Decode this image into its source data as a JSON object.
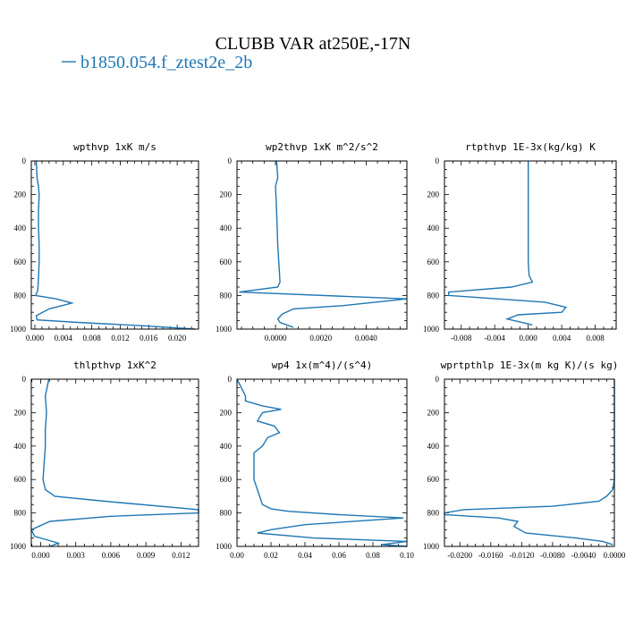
{
  "figure": {
    "title": "CLUBB VAR at250E,-17N",
    "legend": [
      {
        "label": "b1850.054.f_ztest2e_2b",
        "color": "#1f77b4"
      }
    ]
  },
  "chart_data": [
    {
      "type": "line",
      "title": "wpthvp   1xK m/s",
      "xlim": [
        -0.0005,
        0.023
      ],
      "ylim": [
        1000,
        0
      ],
      "yticks": [
        0,
        200,
        400,
        600,
        800,
        1000
      ],
      "xticks": [
        0,
        0.004,
        0.008,
        0.012,
        0.016,
        0.02
      ],
      "xtick_labels": [
        "0.000",
        "0.004",
        "0.008",
        "0.012",
        "0.016",
        "0.020"
      ],
      "series": [
        {
          "color": "#1f77b4",
          "x": [
            0.0002,
            0.0003,
            0.0005,
            0.0006,
            0.0005,
            0.0005,
            0.0006,
            0.0006,
            0.0005,
            0.0004,
            0.0001,
            0.003,
            0.0052,
            0.002,
            0.0002,
            0.0003,
            0.006,
            0.015,
            0.0225
          ],
          "y": [
            0,
            100,
            150,
            200,
            300,
            400,
            500,
            600,
            700,
            770,
            800,
            820,
            845,
            880,
            920,
            945,
            960,
            980,
            1000
          ]
        }
      ]
    },
    {
      "type": "line",
      "title": "wp2thvp   1xK m^2/s^2",
      "xlim": [
        -0.0017,
        0.0058
      ],
      "ylim": [
        1000,
        0
      ],
      "yticks": [
        0,
        200,
        400,
        600,
        800,
        1000
      ],
      "xticks": [
        0,
        0.002,
        0.004
      ],
      "xtick_labels": [
        "0.0000",
        "0.0020",
        "0.0040"
      ],
      "series": [
        {
          "color": "#1f77b4",
          "x": [
            5e-05,
            0.0001,
            0.0,
            5e-05,
            0.0001,
            0.0002,
            0.0001,
            -0.0016,
            0.0058,
            0.003,
            0.0008,
            0.0003,
            0.0001,
            0.0002,
            0.0008
          ],
          "y": [
            0,
            100,
            150,
            300,
            500,
            720,
            750,
            780,
            820,
            860,
            880,
            910,
            940,
            960,
            990
          ]
        }
      ]
    },
    {
      "type": "line",
      "title": "rtpthvp   1E-3x(kg/kg) K",
      "xlim": [
        -0.01,
        0.0105
      ],
      "ylim": [
        1000,
        0
      ],
      "yticks": [
        0,
        200,
        400,
        600,
        800,
        1000
      ],
      "xticks": [
        -0.008,
        -0.004,
        0,
        0.004,
        0.008
      ],
      "xtick_labels": [
        "-0.008",
        "-0.004",
        "0.000",
        "0.004",
        "0.008"
      ],
      "series": [
        {
          "color": "#1f77b4",
          "x": [
            0,
            0,
            0,
            0,
            0.0001,
            0.0005,
            -0.002,
            -0.0095,
            -0.0095,
            0.002,
            0.0045,
            0.004,
            -0.0012,
            -0.0025,
            0.0005
          ],
          "y": [
            0,
            200,
            400,
            600,
            680,
            720,
            750,
            780,
            800,
            840,
            870,
            900,
            915,
            940,
            975
          ]
        }
      ]
    },
    {
      "type": "line",
      "title": "thlpthvp   1xK^2",
      "xlim": [
        -0.0008,
        0.0135
      ],
      "ylim": [
        1000,
        0
      ],
      "yticks": [
        0,
        200,
        400,
        600,
        800,
        1000
      ],
      "xticks": [
        0,
        0.003,
        0.006,
        0.009,
        0.012
      ],
      "xtick_labels": [
        "0.000",
        "0.003",
        "0.006",
        "0.009",
        "0.012"
      ],
      "series": [
        {
          "color": "#1f77b4",
          "x": [
            0.0007,
            0.0004,
            0.0005,
            0.0004,
            0.0004,
            0.0003,
            0.0002,
            0.0004,
            0.0012,
            0.0055,
            0.0135,
            0.0135,
            0.006,
            0.0008,
            -0.0008,
            -0.0005,
            0.0005,
            0.0015,
            0.0008
          ],
          "y": [
            0,
            100,
            200,
            300,
            400,
            500,
            600,
            660,
            700,
            730,
            780,
            800,
            820,
            850,
            900,
            940,
            960,
            980,
            1000
          ]
        }
      ]
    },
    {
      "type": "line",
      "title": "wp4   1x(m^4)/(s^4)",
      "xlim": [
        0,
        0.1
      ],
      "ylim": [
        1000,
        0
      ],
      "yticks": [
        0,
        200,
        400,
        600,
        800,
        1000
      ],
      "xticks": [
        0,
        0.02,
        0.04,
        0.06,
        0.08,
        0.1
      ],
      "xtick_labels": [
        "0.00",
        "0.02",
        "0.04",
        "0.06",
        "0.08",
        "0.10"
      ],
      "series": [
        {
          "color": "#1f77b4",
          "x": [
            0.0,
            0.005,
            0.005,
            0.015,
            0.026,
            0.015,
            0.012,
            0.022,
            0.025,
            0.018,
            0.015,
            0.01,
            0.01,
            0.015,
            0.02,
            0.03,
            0.06,
            0.098,
            0.04,
            0.02,
            0.012,
            0.045,
            0.1,
            0.085,
            0.1
          ],
          "y": [
            0,
            100,
            130,
            160,
            180,
            200,
            250,
            280,
            320,
            350,
            400,
            440,
            600,
            750,
            775,
            790,
            810,
            830,
            870,
            900,
            920,
            950,
            970,
            990,
            1000
          ]
        }
      ]
    },
    {
      "type": "line",
      "title": "wprtpthlp   1E-3x(m kg K)/(s kg)",
      "xlim": [
        -0.022,
        0
      ],
      "ylim": [
        1000,
        0
      ],
      "yticks": [
        0,
        200,
        400,
        600,
        800,
        1000
      ],
      "xticks": [
        -0.02,
        -0.016,
        -0.012,
        -0.008,
        -0.004,
        0
      ],
      "xtick_labels": [
        "-0.0200",
        "-0.0160",
        "-0.0120",
        "-0.0080",
        "-0.0040",
        "0.0000"
      ],
      "series": [
        {
          "color": "#1f77b4",
          "x": [
            0,
            0,
            0,
            0,
            -0.0002,
            -0.001,
            -0.002,
            -0.008,
            -0.0195,
            -0.022,
            -0.022,
            -0.015,
            -0.0125,
            -0.013,
            -0.0115,
            -0.005,
            -0.0015,
            -0.0002
          ],
          "y": [
            0,
            200,
            400,
            600,
            660,
            700,
            730,
            760,
            780,
            800,
            810,
            830,
            850,
            880,
            920,
            950,
            970,
            990
          ]
        }
      ]
    }
  ]
}
